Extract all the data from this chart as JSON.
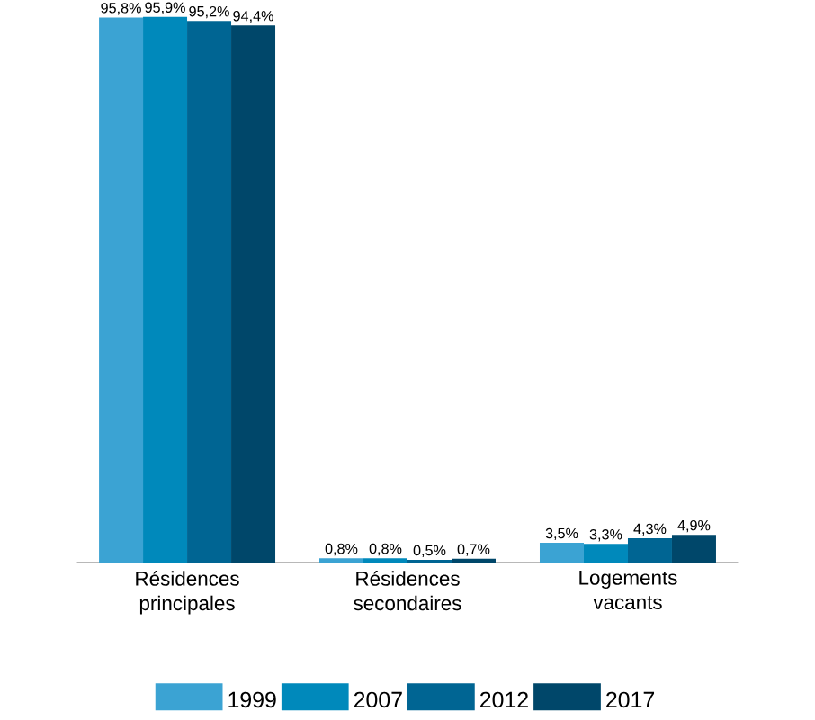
{
  "chart_data": {
    "type": "bar",
    "categories": [
      "Résidences principales",
      "Résidences secondaires",
      "Logements vacants"
    ],
    "series": [
      {
        "name": "1999",
        "color": "#3ba3d3",
        "values": [
          95.8,
          0.8,
          3.5
        ],
        "value_labels": [
          "95,8%",
          "0,8%",
          "3,5%"
        ]
      },
      {
        "name": "2007",
        "color": "#0089bb",
        "values": [
          95.9,
          0.8,
          3.3
        ],
        "value_labels": [
          "95,9%",
          "0,8%",
          "3,3%"
        ]
      },
      {
        "name": "2012",
        "color": "#006593",
        "values": [
          95.2,
          0.5,
          4.3
        ],
        "value_labels": [
          "95,2%",
          "0,5%",
          "4,3%"
        ]
      },
      {
        "name": "2017",
        "color": "#00476a",
        "values": [
          94.4,
          0.7,
          4.9
        ],
        "value_labels": [
          "94,4%",
          "0,7%",
          "4,9%"
        ]
      }
    ],
    "legend": "bottom"
  }
}
